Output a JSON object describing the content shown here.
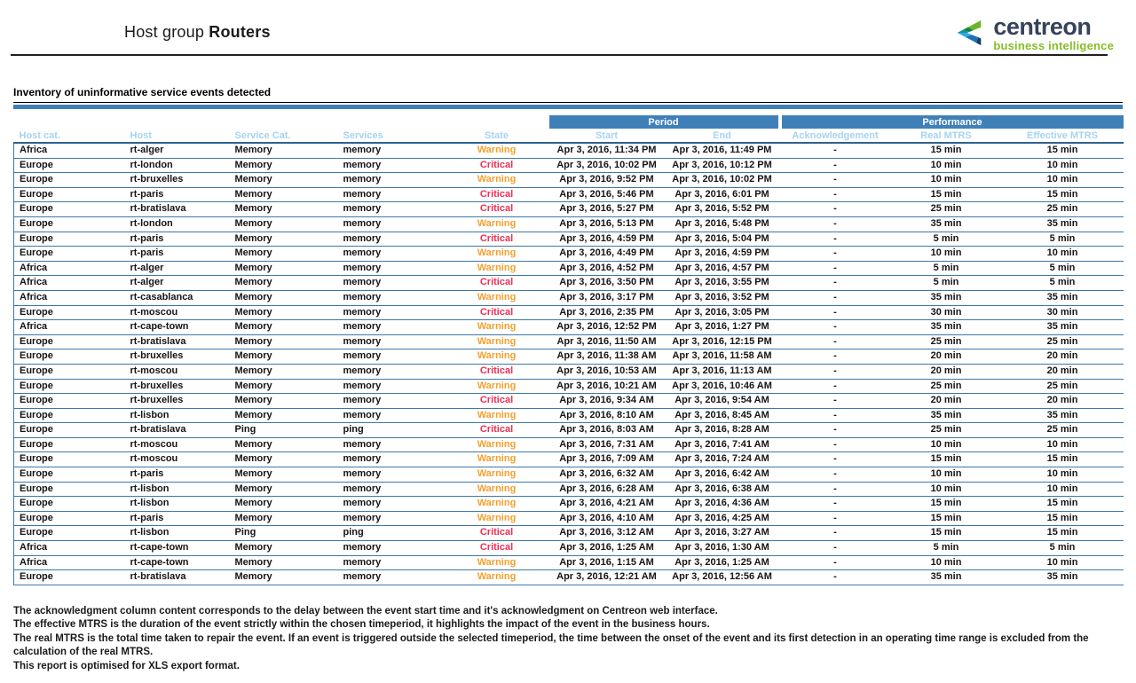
{
  "report": {
    "title_prefix": "Host group",
    "title_bold": "Routers",
    "section_title": "Inventory of uninformative service events detected"
  },
  "logo": {
    "brand": "centreon",
    "tagline": "business intelligence",
    "icon_colors": [
      "#6fb52c",
      "#13833f",
      "#0f9596",
      "#2fa9e1",
      "#1d70b7",
      "#123d6d"
    ]
  },
  "colors": {
    "accent_blue": "#4080b8",
    "header_text_blue": "#a6d3f0",
    "warning": "#f5a02c",
    "critical": "#ee2e53",
    "row_line": "#3c78ab",
    "line_dark": "#2d628f",
    "brand_dark": "#36435a",
    "brand_green": "#86bd28"
  },
  "table": {
    "group_headers": [
      "Period",
      "Performance"
    ],
    "columns": [
      "Host cat.",
      "Host",
      "Service Cat.",
      "Services",
      "State",
      "Start",
      "End",
      "Acknowledgement",
      "Real MTRS",
      "Effective MTRS"
    ],
    "rows": [
      {
        "host_cat": "Africa",
        "host": "rt-alger",
        "service_cat": "Memory",
        "service": "memory",
        "state": "Warning",
        "start": "Apr 3, 2016, 11:34 PM",
        "end": "Apr 3, 2016, 11:49 PM",
        "ack": "-",
        "real": "15 min",
        "eff": "15 min"
      },
      {
        "host_cat": "Europe",
        "host": "rt-london",
        "service_cat": "Memory",
        "service": "memory",
        "state": "Critical",
        "start": "Apr 3, 2016, 10:02 PM",
        "end": "Apr 3, 2016, 10:12 PM",
        "ack": "-",
        "real": "10 min",
        "eff": "10 min"
      },
      {
        "host_cat": "Europe",
        "host": "rt-bruxelles",
        "service_cat": "Memory",
        "service": "memory",
        "state": "Warning",
        "start": "Apr 3, 2016, 9:52 PM",
        "end": "Apr 3, 2016, 10:02 PM",
        "ack": "-",
        "real": "10 min",
        "eff": "10 min"
      },
      {
        "host_cat": "Europe",
        "host": "rt-paris",
        "service_cat": "Memory",
        "service": "memory",
        "state": "Critical",
        "start": "Apr 3, 2016, 5:46 PM",
        "end": "Apr 3, 2016, 6:01 PM",
        "ack": "-",
        "real": "15 min",
        "eff": "15 min"
      },
      {
        "host_cat": "Europe",
        "host": "rt-bratislava",
        "service_cat": "Memory",
        "service": "memory",
        "state": "Critical",
        "start": "Apr 3, 2016, 5:27 PM",
        "end": "Apr 3, 2016, 5:52 PM",
        "ack": "-",
        "real": "25 min",
        "eff": "25 min"
      },
      {
        "host_cat": "Europe",
        "host": "rt-london",
        "service_cat": "Memory",
        "service": "memory",
        "state": "Warning",
        "start": "Apr 3, 2016, 5:13 PM",
        "end": "Apr 3, 2016, 5:48 PM",
        "ack": "-",
        "real": "35 min",
        "eff": "35 min"
      },
      {
        "host_cat": "Europe",
        "host": "rt-paris",
        "service_cat": "Memory",
        "service": "memory",
        "state": "Critical",
        "start": "Apr 3, 2016, 4:59 PM",
        "end": "Apr 3, 2016, 5:04 PM",
        "ack": "-",
        "real": "5 min",
        "eff": "5 min"
      },
      {
        "host_cat": "Europe",
        "host": "rt-paris",
        "service_cat": "Memory",
        "service": "memory",
        "state": "Warning",
        "start": "Apr 3, 2016, 4:49 PM",
        "end": "Apr 3, 2016, 4:59 PM",
        "ack": "-",
        "real": "10 min",
        "eff": "10 min"
      },
      {
        "host_cat": "Africa",
        "host": "rt-alger",
        "service_cat": "Memory",
        "service": "memory",
        "state": "Warning",
        "start": "Apr 3, 2016, 4:52 PM",
        "end": "Apr 3, 2016, 4:57 PM",
        "ack": "-",
        "real": "5 min",
        "eff": "5 min"
      },
      {
        "host_cat": "Africa",
        "host": "rt-alger",
        "service_cat": "Memory",
        "service": "memory",
        "state": "Critical",
        "start": "Apr 3, 2016, 3:50 PM",
        "end": "Apr 3, 2016, 3:55 PM",
        "ack": "-",
        "real": "5 min",
        "eff": "5 min"
      },
      {
        "host_cat": "Africa",
        "host": "rt-casablanca",
        "service_cat": "Memory",
        "service": "memory",
        "state": "Warning",
        "start": "Apr 3, 2016, 3:17 PM",
        "end": "Apr 3, 2016, 3:52 PM",
        "ack": "-",
        "real": "35 min",
        "eff": "35 min"
      },
      {
        "host_cat": "Europe",
        "host": "rt-moscou",
        "service_cat": "Memory",
        "service": "memory",
        "state": "Critical",
        "start": "Apr 3, 2016, 2:35 PM",
        "end": "Apr 3, 2016, 3:05 PM",
        "ack": "-",
        "real": "30 min",
        "eff": "30 min"
      },
      {
        "host_cat": "Africa",
        "host": "rt-cape-town",
        "service_cat": "Memory",
        "service": "memory",
        "state": "Warning",
        "start": "Apr 3, 2016, 12:52 PM",
        "end": "Apr 3, 2016, 1:27 PM",
        "ack": "-",
        "real": "35 min",
        "eff": "35 min"
      },
      {
        "host_cat": "Europe",
        "host": "rt-bratislava",
        "service_cat": "Memory",
        "service": "memory",
        "state": "Warning",
        "start": "Apr 3, 2016, 11:50 AM",
        "end": "Apr 3, 2016, 12:15 PM",
        "ack": "-",
        "real": "25 min",
        "eff": "25 min"
      },
      {
        "host_cat": "Europe",
        "host": "rt-bruxelles",
        "service_cat": "Memory",
        "service": "memory",
        "state": "Warning",
        "start": "Apr 3, 2016, 11:38 AM",
        "end": "Apr 3, 2016, 11:58 AM",
        "ack": "-",
        "real": "20 min",
        "eff": "20 min"
      },
      {
        "host_cat": "Europe",
        "host": "rt-moscou",
        "service_cat": "Memory",
        "service": "memory",
        "state": "Critical",
        "start": "Apr 3, 2016, 10:53 AM",
        "end": "Apr 3, 2016, 11:13 AM",
        "ack": "-",
        "real": "20 min",
        "eff": "20 min"
      },
      {
        "host_cat": "Europe",
        "host": "rt-bruxelles",
        "service_cat": "Memory",
        "service": "memory",
        "state": "Warning",
        "start": "Apr 3, 2016, 10:21 AM",
        "end": "Apr 3, 2016, 10:46 AM",
        "ack": "-",
        "real": "25 min",
        "eff": "25 min"
      },
      {
        "host_cat": "Europe",
        "host": "rt-bruxelles",
        "service_cat": "Memory",
        "service": "memory",
        "state": "Critical",
        "start": "Apr 3, 2016, 9:34 AM",
        "end": "Apr 3, 2016, 9:54 AM",
        "ack": "-",
        "real": "20 min",
        "eff": "20 min"
      },
      {
        "host_cat": "Europe",
        "host": "rt-lisbon",
        "service_cat": "Memory",
        "service": "memory",
        "state": "Warning",
        "start": "Apr 3, 2016, 8:10 AM",
        "end": "Apr 3, 2016, 8:45 AM",
        "ack": "-",
        "real": "35 min",
        "eff": "35 min"
      },
      {
        "host_cat": "Europe",
        "host": "rt-bratislava",
        "service_cat": "Ping",
        "service": "ping",
        "state": "Critical",
        "start": "Apr 3, 2016, 8:03 AM",
        "end": "Apr 3, 2016, 8:28 AM",
        "ack": "-",
        "real": "25 min",
        "eff": "25 min"
      },
      {
        "host_cat": "Europe",
        "host": "rt-moscou",
        "service_cat": "Memory",
        "service": "memory",
        "state": "Warning",
        "start": "Apr 3, 2016, 7:31 AM",
        "end": "Apr 3, 2016, 7:41 AM",
        "ack": "-",
        "real": "10 min",
        "eff": "10 min"
      },
      {
        "host_cat": "Europe",
        "host": "rt-moscou",
        "service_cat": "Memory",
        "service": "memory",
        "state": "Warning",
        "start": "Apr 3, 2016, 7:09 AM",
        "end": "Apr 3, 2016, 7:24 AM",
        "ack": "-",
        "real": "15 min",
        "eff": "15 min"
      },
      {
        "host_cat": "Europe",
        "host": "rt-paris",
        "service_cat": "Memory",
        "service": "memory",
        "state": "Warning",
        "start": "Apr 3, 2016, 6:32 AM",
        "end": "Apr 3, 2016, 6:42 AM",
        "ack": "-",
        "real": "10 min",
        "eff": "10 min"
      },
      {
        "host_cat": "Europe",
        "host": "rt-lisbon",
        "service_cat": "Memory",
        "service": "memory",
        "state": "Warning",
        "start": "Apr 3, 2016, 6:28 AM",
        "end": "Apr 3, 2016, 6:38 AM",
        "ack": "-",
        "real": "10 min",
        "eff": "10 min"
      },
      {
        "host_cat": "Europe",
        "host": "rt-lisbon",
        "service_cat": "Memory",
        "service": "memory",
        "state": "Warning",
        "start": "Apr 3, 2016, 4:21 AM",
        "end": "Apr 3, 2016, 4:36 AM",
        "ack": "-",
        "real": "15 min",
        "eff": "15 min"
      },
      {
        "host_cat": "Europe",
        "host": "rt-paris",
        "service_cat": "Memory",
        "service": "memory",
        "state": "Warning",
        "start": "Apr 3, 2016, 4:10 AM",
        "end": "Apr 3, 2016, 4:25 AM",
        "ack": "-",
        "real": "15 min",
        "eff": "15 min"
      },
      {
        "host_cat": "Europe",
        "host": "rt-lisbon",
        "service_cat": "Ping",
        "service": "ping",
        "state": "Critical",
        "start": "Apr 3, 2016, 3:12 AM",
        "end": "Apr 3, 2016, 3:27 AM",
        "ack": "-",
        "real": "15 min",
        "eff": "15 min"
      },
      {
        "host_cat": "Africa",
        "host": "rt-cape-town",
        "service_cat": "Memory",
        "service": "memory",
        "state": "Critical",
        "start": "Apr 3, 2016, 1:25 AM",
        "end": "Apr 3, 2016, 1:30 AM",
        "ack": "-",
        "real": "5 min",
        "eff": "5 min"
      },
      {
        "host_cat": "Africa",
        "host": "rt-cape-town",
        "service_cat": "Memory",
        "service": "memory",
        "state": "Warning",
        "start": "Apr 3, 2016, 1:15 AM",
        "end": "Apr 3, 2016, 1:25 AM",
        "ack": "-",
        "real": "10 min",
        "eff": "10 min"
      },
      {
        "host_cat": "Europe",
        "host": "rt-bratislava",
        "service_cat": "Memory",
        "service": "memory",
        "state": "Warning",
        "start": "Apr 3, 2016, 12:21 AM",
        "end": "Apr 3, 2016, 12:56 AM",
        "ack": "-",
        "real": "35 min",
        "eff": "35 min"
      }
    ]
  },
  "footnotes": [
    "The acknowledgment column content corresponds to the delay between the event start time and it's acknowledgment on Centreon web interface.",
    "The effective MTRS is the duration of the event strictly within the chosen timeperiod, it highlights the impact of the event in the business hours.",
    "The real MTRS is the total time taken to repair the event. If an event is triggered outside the selected timeperiod, the time between the onset of the event and its first detection in an operating time range is excluded from the calculation of the real MTRS.",
    "This report is optimised for XLS export format."
  ]
}
